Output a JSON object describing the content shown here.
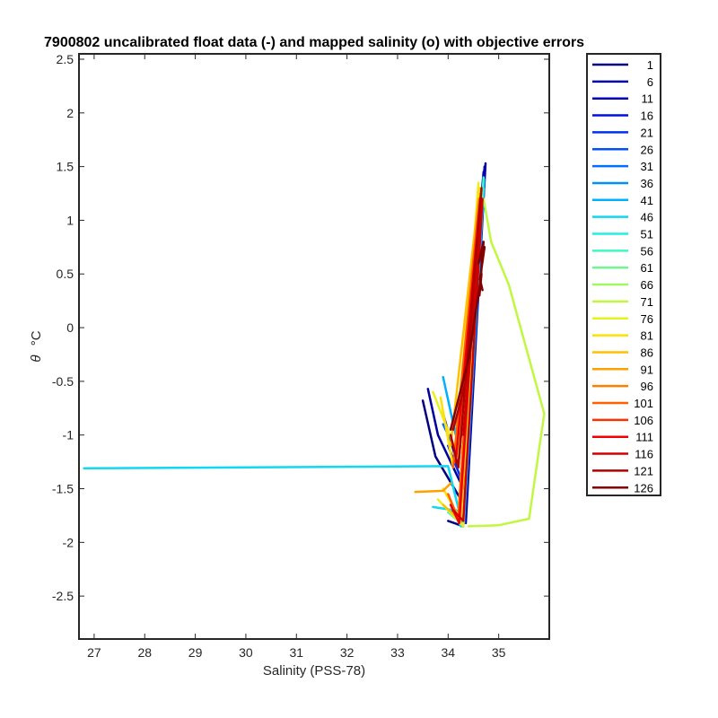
{
  "chart_data": {
    "type": "line",
    "title": "7900802 uncalibrated float data (-) and mapped salinity (o) with objective errors",
    "xlabel": "Salinity (PSS-78)",
    "ylabel_symbol": "θ",
    "ylabel_unit": "°C",
    "xlim": [
      26.7,
      36.0
    ],
    "ylim": [
      -2.9,
      2.55
    ],
    "xticks": [
      27,
      28,
      29,
      30,
      31,
      32,
      33,
      34,
      35
    ],
    "yticks": [
      -2.5,
      -2,
      -1.5,
      -1,
      -0.5,
      0,
      0.5,
      1,
      1.5,
      2,
      2.5
    ],
    "ytick_labels": [
      "-2.5",
      "-2",
      "-1.5",
      "-1",
      "-0.5",
      "0",
      "0.5",
      "1",
      "1.5",
      "2",
      "2.5"
    ],
    "legend_position": "outside-right",
    "legend": [
      {
        "label": "1",
        "color": "#000080"
      },
      {
        "label": "6",
        "color": "#00009f"
      },
      {
        "label": "11",
        "color": "#0000c0"
      },
      {
        "label": "16",
        "color": "#0010e0"
      },
      {
        "label": "21",
        "color": "#0030f0"
      },
      {
        "label": "26",
        "color": "#0050ff"
      },
      {
        "label": "31",
        "color": "#0070ff"
      },
      {
        "label": "36",
        "color": "#0090ff"
      },
      {
        "label": "41",
        "color": "#00b0ff"
      },
      {
        "label": "46",
        "color": "#10d8f0"
      },
      {
        "label": "51",
        "color": "#20f0e0"
      },
      {
        "label": "56",
        "color": "#40f8c0"
      },
      {
        "label": "61",
        "color": "#70f890"
      },
      {
        "label": "66",
        "color": "#a0f860"
      },
      {
        "label": "71",
        "color": "#c0f840"
      },
      {
        "label": "76",
        "color": "#e8f020"
      },
      {
        "label": "81",
        "color": "#ffe000"
      },
      {
        "label": "86",
        "color": "#ffc000"
      },
      {
        "label": "91",
        "color": "#ffa000"
      },
      {
        "label": "96",
        "color": "#ff8000"
      },
      {
        "label": "101",
        "color": "#ff6000"
      },
      {
        "label": "106",
        "color": "#ff3000"
      },
      {
        "label": "111",
        "color": "#f00000"
      },
      {
        "label": "116",
        "color": "#d00000"
      },
      {
        "label": "121",
        "color": "#b00000"
      },
      {
        "label": "126",
        "color": "#800000"
      }
    ],
    "series": [
      {
        "color": "#000080",
        "x": [
          34.0,
          34.3,
          34.72,
          34.25,
          33.75,
          33.5
        ],
        "y": [
          -1.8,
          -1.85,
          1.5,
          -1.6,
          -1.2,
          -0.68
        ]
      },
      {
        "color": "#00009f",
        "x": [
          34.1,
          34.35,
          34.74,
          34.3,
          33.8,
          33.6
        ],
        "y": [
          -1.75,
          -1.82,
          1.53,
          -1.5,
          -1.0,
          -0.57
        ]
      },
      {
        "color": "#0000c0",
        "x": [
          34.05,
          34.3,
          34.7,
          34.2,
          33.9
        ],
        "y": [
          -1.7,
          -1.84,
          1.45,
          -1.3,
          -0.8
        ]
      },
      {
        "color": "#0030f0",
        "x": [
          34.1,
          34.3,
          34.7,
          34.25,
          34.0
        ],
        "y": [
          -1.72,
          -1.8,
          1.4,
          -1.4,
          -1.1
        ]
      },
      {
        "color": "#0070ff",
        "x": [
          34.15,
          34.32,
          34.72,
          34.2,
          33.9
        ],
        "y": [
          -1.7,
          -1.82,
          1.38,
          -1.2,
          -0.9
        ]
      },
      {
        "color": "#00b0ff",
        "x": [
          34.2,
          34.3,
          34.7,
          34.15,
          33.9
        ],
        "y": [
          -1.7,
          -1.83,
          1.35,
          -1.0,
          -0.46
        ]
      },
      {
        "color": "#10d8f0",
        "x": [
          26.8,
          34.0,
          34.2
        ],
        "y": [
          -1.31,
          -1.29,
          -1.68
        ]
      },
      {
        "color": "#10d8f0",
        "x": [
          33.7,
          34.1,
          34.25,
          34.2,
          34.3,
          34.7
        ],
        "y": [
          -1.67,
          -1.7,
          -1.85,
          -1.65,
          -1.82,
          1.3
        ]
      },
      {
        "color": "#40f8c0",
        "x": [
          34.0,
          34.3,
          34.7
        ],
        "y": [
          -1.72,
          -1.84,
          1.4
        ]
      },
      {
        "color": "#c0f840",
        "x": [
          34.7,
          34.85,
          35.2,
          35.55,
          35.9,
          35.6,
          35.0,
          34.4
        ],
        "y": [
          1.2,
          0.8,
          0.4,
          -0.2,
          -0.8,
          -1.78,
          -1.84,
          -1.85
        ]
      },
      {
        "color": "#e8f020",
        "x": [
          33.8,
          34.3,
          34.6,
          34.2,
          33.7
        ],
        "y": [
          -1.6,
          -1.85,
          1.35,
          -1.2,
          -0.6
        ]
      },
      {
        "color": "#ffe000",
        "x": [
          33.9,
          34.2,
          34.62,
          34.1,
          33.85
        ],
        "y": [
          -1.5,
          -1.75,
          1.3,
          -1.3,
          -0.65
        ]
      },
      {
        "color": "#ffc000",
        "x": [
          33.9,
          34.25,
          34.6,
          34.05
        ],
        "y": [
          -1.65,
          -1.8,
          1.2,
          -1.1
        ]
      },
      {
        "color": "#ffa000",
        "x": [
          33.35,
          33.9,
          34.05
        ],
        "y": [
          -1.53,
          -1.52,
          -1.45
        ]
      },
      {
        "color": "#ff6000",
        "x": [
          34.0,
          34.2,
          34.62,
          34.1
        ],
        "y": [
          -1.55,
          -1.78,
          1.2,
          -1.3
        ]
      },
      {
        "color": "#f00000",
        "x": [
          34.05,
          34.22,
          34.65,
          34.15
        ],
        "y": [
          -1.65,
          -1.82,
          1.25,
          -1.25
        ]
      },
      {
        "color": "#d00000",
        "x": [
          34.1,
          34.3,
          34.68,
          34.3
        ],
        "y": [
          -1.7,
          -1.8,
          1.2,
          -1.0
        ]
      },
      {
        "color": "#b00000",
        "x": [
          34.05,
          34.2,
          34.66,
          34.35,
          34.1
        ],
        "y": [
          -1.0,
          -1.3,
          1.3,
          -0.5,
          -0.95
        ]
      },
      {
        "color": "#800000",
        "x": [
          34.05,
          34.4,
          34.66,
          34.62,
          34.7,
          34.6,
          34.72,
          34.63,
          34.68
        ],
        "y": [
          -0.95,
          -0.3,
          0.5,
          0.3,
          0.8,
          0.6,
          0.75,
          0.45,
          0.35
        ]
      }
    ]
  }
}
